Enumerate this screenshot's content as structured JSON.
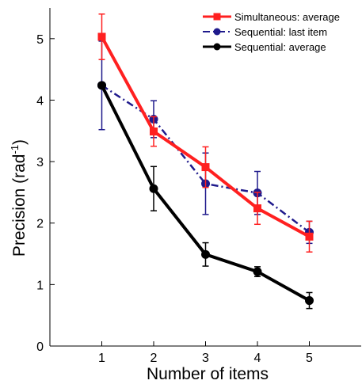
{
  "chart_data": {
    "type": "line",
    "xlabel": "Number of items",
    "ylabel": {
      "base": "Precision (rad",
      "sup": "-1",
      "end": ")"
    },
    "x": [
      1,
      2,
      3,
      4,
      5
    ],
    "xlim": [
      0,
      6
    ],
    "ylim": [
      0,
      5.5
    ],
    "xticks": [
      1,
      2,
      3,
      4,
      5
    ],
    "yticks": [
      0,
      1,
      2,
      3,
      4,
      5
    ],
    "grid": false,
    "legend_position": "top-right",
    "series": [
      {
        "name": "Sequential: last item",
        "values": [
          4.24,
          3.69,
          2.64,
          2.49,
          1.85
        ],
        "errors": [
          0.72,
          0.3,
          0.5,
          0.35,
          0.18
        ],
        "color": "#1f1a8c",
        "line_style": "dash-dot",
        "marker": "circle"
      },
      {
        "name": "Simultaneous: average",
        "values": [
          5.03,
          3.49,
          2.91,
          2.24,
          1.78
        ],
        "errors": [
          0.37,
          0.24,
          0.33,
          0.26,
          0.25
        ],
        "color": "#ff2020",
        "line_style": "solid",
        "marker": "square"
      },
      {
        "name": "Sequential: average",
        "values": [
          4.24,
          2.56,
          1.49,
          1.21,
          0.74
        ],
        "errors": [
          0.0,
          0.36,
          0.19,
          0.08,
          0.13
        ],
        "color": "#000000",
        "line_style": "solid",
        "marker": "circle"
      }
    ],
    "legend_order": [
      1,
      0,
      2
    ]
  }
}
